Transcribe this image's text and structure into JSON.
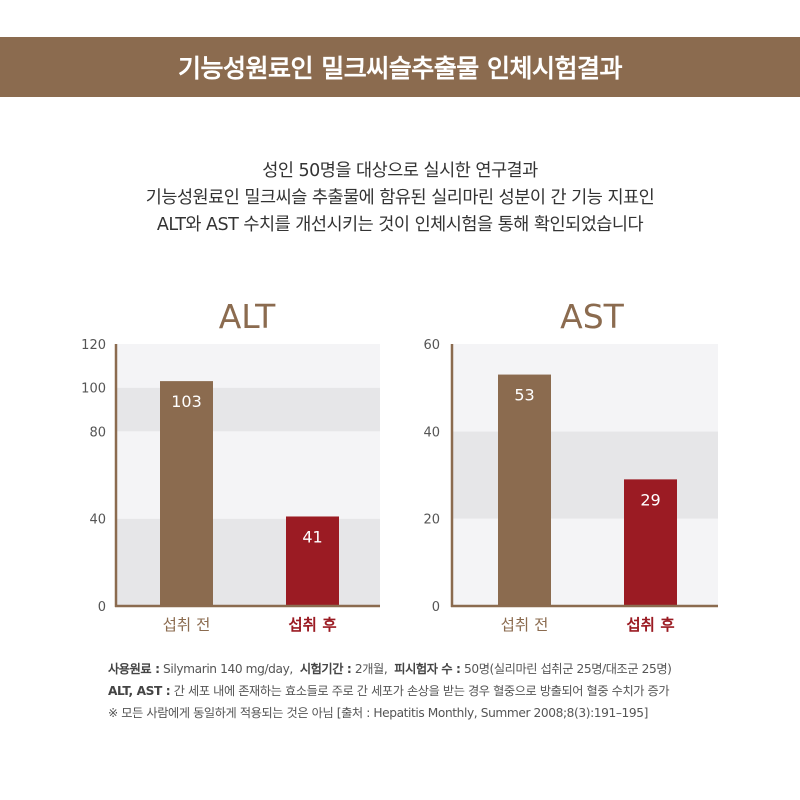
{
  "header": {
    "title": "기능성원료인 밀크씨슬추출물 인체시험결과"
  },
  "intro": {
    "lines": [
      "성인 50명을 대상으로 실시한 연구결과",
      "기능성원료인 밀크씨슬 추출물에 함유된 실리마린 성분이 간 기능 지표인",
      "ALT와 AST 수치를 개선시키는 것이 인체시험을 통해 확인되었습니다"
    ]
  },
  "chart_data": [
    {
      "type": "bar",
      "title": "ALT",
      "categories": [
        "섭취 전",
        "섭취 후"
      ],
      "values": [
        103,
        41
      ],
      "ylim": [
        0,
        120
      ],
      "yticks": [
        0,
        40,
        80,
        100,
        120
      ],
      "bar_colors": [
        "#8b6b4f",
        "#9b1b23"
      ],
      "label_colors": [
        "#8b6b4f",
        "#9b1b23"
      ],
      "grid": true,
      "bands": [
        [
          0,
          40,
          "#e6e6e8"
        ],
        [
          40,
          80,
          "#f4f4f6"
        ],
        [
          80,
          100,
          "#e6e6e8"
        ],
        [
          100,
          120,
          "#f4f4f6"
        ]
      ]
    },
    {
      "type": "bar",
      "title": "AST",
      "categories": [
        "섭취 전",
        "섭취 후"
      ],
      "values": [
        53,
        29
      ],
      "ylim": [
        0,
        60
      ],
      "yticks": [
        0,
        20,
        40,
        60
      ],
      "bar_colors": [
        "#8b6b4f",
        "#9b1b23"
      ],
      "label_colors": [
        "#8b6b4f",
        "#9b1b23"
      ],
      "grid": true,
      "bands": [
        [
          0,
          20,
          "#f4f4f6"
        ],
        [
          20,
          40,
          "#e6e6e8"
        ],
        [
          40,
          60,
          "#f4f4f6"
        ]
      ]
    }
  ],
  "footnotes": {
    "line1": {
      "label1": "사용원료 :",
      "text1": " Silymarin 140 mg/day,",
      "label2": "시험기간 :",
      "text2": " 2개월,",
      "label3": "피시험자 수 :",
      "text3": " 50명(실리마린 섭취군 25명/대조군 25명)"
    },
    "line2": {
      "label": "ALT, AST :",
      "text": " 간 세포 내에 존재하는 효소들로 주로 간 세포가 손상을 받는 경우 혈중으로 방출되어 혈중 수치가 증가"
    },
    "line3": {
      "text": "※ 모든 사람에게 동일하게 적용되는 것은 아님 [출처 : Hepatitis Monthly, Summer 2008;8(3):191–195]"
    }
  },
  "colors": {
    "banner": "#8b6b4f",
    "axis": "#8b6b4f",
    "before": "#8b6b4f",
    "after": "#9b1b23"
  }
}
